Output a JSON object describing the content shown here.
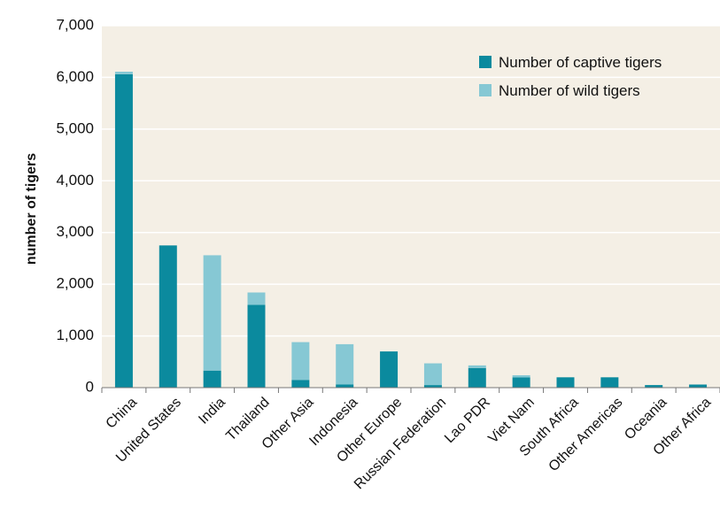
{
  "chart_data": {
    "type": "bar",
    "stacked": true,
    "title": "",
    "xlabel": "",
    "ylabel": "number of tigers",
    "ylim": [
      0,
      7000
    ],
    "yticks": [
      "0",
      "1,000",
      "2,000",
      "3,000",
      "4,000",
      "5,000",
      "6,000",
      "7,000"
    ],
    "grid": true,
    "legend_position": "top-right",
    "categories": [
      "China",
      "United States",
      "India",
      "Thailand",
      "Other Asia",
      "Indonesia",
      "Other Europe",
      "Russian Federation",
      "Lao PDR",
      "Viet Nam",
      "South Africa",
      "Other Americas",
      "Oceania",
      "Other Africa"
    ],
    "series": [
      {
        "name": "Number of captive tigers",
        "color": "#0b8a9e",
        "values": [
          6060,
          2750,
          330,
          1600,
          150,
          60,
          700,
          50,
          380,
          200,
          200,
          200,
          50,
          60
        ]
      },
      {
        "name": "Number of wild tigers",
        "color": "#86c8d4",
        "values": [
          50,
          0,
          2230,
          240,
          730,
          780,
          0,
          420,
          50,
          40,
          0,
          0,
          0,
          0
        ]
      }
    ],
    "colors": {
      "plot_background": "#f4efe5",
      "gridline": "#ffffff"
    }
  }
}
